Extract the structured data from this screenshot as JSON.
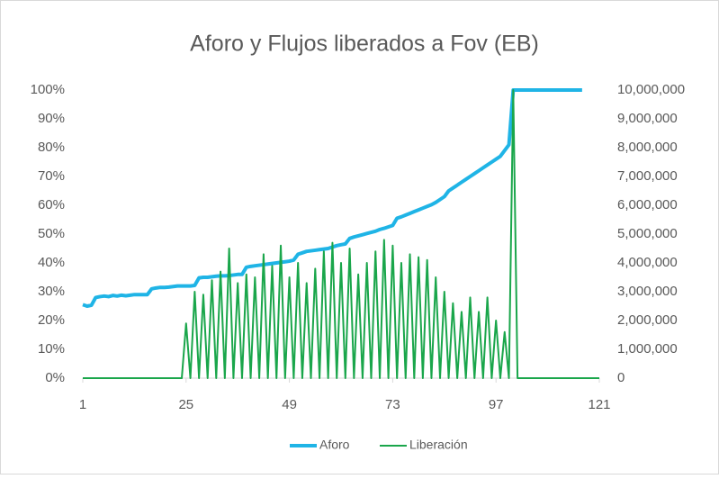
{
  "chart_data": {
    "type": "line",
    "title": "Aforo y Flujos liberados a Fov (EB)",
    "x": [
      1,
      2,
      3,
      4,
      5,
      6,
      7,
      8,
      9,
      10,
      11,
      12,
      13,
      14,
      15,
      16,
      17,
      18,
      19,
      20,
      21,
      22,
      23,
      24,
      25,
      26,
      27,
      28,
      29,
      30,
      31,
      32,
      33,
      34,
      35,
      36,
      37,
      38,
      39,
      40,
      41,
      42,
      43,
      44,
      45,
      46,
      47,
      48,
      49,
      50,
      51,
      52,
      53,
      54,
      55,
      56,
      57,
      58,
      59,
      60,
      61,
      62,
      63,
      64,
      65,
      66,
      67,
      68,
      69,
      70,
      71,
      72,
      73,
      74,
      75,
      76,
      77,
      78,
      79,
      80,
      81,
      82,
      83,
      84,
      85,
      86,
      87,
      88,
      89,
      90,
      91,
      92,
      93,
      94,
      95,
      96,
      97,
      98,
      99,
      100,
      101,
      102,
      103,
      104,
      105,
      106,
      107,
      108,
      109,
      110,
      111,
      112,
      113,
      114,
      115,
      116,
      117,
      118,
      119,
      120,
      121
    ],
    "xlim": [
      1,
      121
    ],
    "xticks": [
      1,
      25,
      49,
      73,
      97,
      121
    ],
    "ylim": [
      0,
      100
    ],
    "yticks": [
      {
        "value": 0,
        "label": "0%"
      },
      {
        "value": 10,
        "label": "10%"
      },
      {
        "value": 20,
        "label": "20%"
      },
      {
        "value": 30,
        "label": "30%"
      },
      {
        "value": 40,
        "label": "40%"
      },
      {
        "value": 50,
        "label": "50%"
      },
      {
        "value": 60,
        "label": "60%"
      },
      {
        "value": 70,
        "label": "70%"
      },
      {
        "value": 80,
        "label": "80%"
      },
      {
        "value": 90,
        "label": "90%"
      },
      {
        "value": 100,
        "label": "100%"
      }
    ],
    "y2lim": [
      0,
      10000000
    ],
    "y2ticks": [
      0,
      {
        "value": 1000000,
        "label": "1,000,000"
      },
      {
        "value": 2000000,
        "label": "2,000,000"
      },
      {
        "value": 3000000,
        "label": "3,000,000"
      },
      {
        "value": 4000000,
        "label": "4,000,000"
      },
      {
        "value": 5000000,
        "label": "5,000,000"
      },
      {
        "value": 6000000,
        "label": "6,000,000"
      },
      {
        "value": 7000000,
        "label": "7,000,000"
      },
      {
        "value": 8000000,
        "label": "8,000,000"
      },
      {
        "value": 9000000,
        "label": "9,000,000"
      },
      {
        "value": 10000000,
        "label": "10,000,000"
      }
    ],
    "grid": false,
    "legend": "bottom",
    "series": [
      {
        "name": "Aforo",
        "color": "#1fb4e6",
        "axis": "y",
        "values": [
          25.5,
          25,
          25.3,
          28,
          28.3,
          28.5,
          28.3,
          28.7,
          28.5,
          28.8,
          28.6,
          28.8,
          29,
          29,
          29,
          29,
          31,
          31.3,
          31.5,
          31.5,
          31.6,
          31.8,
          32,
          32,
          32,
          32,
          32.2,
          34.8,
          35,
          35,
          35.2,
          35.4,
          35.5,
          35.5,
          35.6,
          35.8,
          36,
          36,
          38.5,
          38.8,
          39,
          39.2,
          39.4,
          39.6,
          39.8,
          40,
          40.2,
          40.4,
          40.6,
          41,
          43,
          43.5,
          44,
          44.2,
          44.4,
          44.6,
          44.8,
          45,
          45.5,
          46,
          46.3,
          46.6,
          48.5,
          49,
          49.4,
          49.8,
          50.2,
          50.6,
          51,
          51.6,
          52,
          52.5,
          53,
          55.5,
          56,
          56.6,
          57.2,
          57.8,
          58.4,
          59,
          59.6,
          60.2,
          61,
          62,
          63,
          65,
          66,
          67,
          68,
          69,
          70,
          71,
          72,
          73,
          74,
          75,
          76,
          77,
          79,
          81,
          100,
          100,
          100,
          100,
          100,
          100,
          100,
          100,
          100,
          100,
          100,
          100,
          100,
          100,
          100,
          100,
          100,
          null,
          null,
          null,
          null
        ]
      },
      {
        "name": "Liberación",
        "color": "#1aa64b",
        "axis": "y2",
        "values": [
          0,
          0,
          0,
          0,
          0,
          0,
          0,
          0,
          0,
          0,
          0,
          0,
          0,
          0,
          0,
          0,
          0,
          0,
          0,
          0,
          0,
          0,
          0,
          0,
          1900000,
          0,
          3000000,
          0,
          2900000,
          0,
          3400000,
          0,
          3700000,
          0,
          4500000,
          0,
          3300000,
          0,
          3600000,
          0,
          3500000,
          0,
          4300000,
          0,
          3900000,
          0,
          4600000,
          0,
          3500000,
          0,
          4000000,
          0,
          3300000,
          0,
          3800000,
          0,
          4400000,
          0,
          4700000,
          0,
          4000000,
          0,
          4500000,
          0,
          3600000,
          0,
          4000000,
          0,
          4400000,
          0,
          4800000,
          0,
          4600000,
          0,
          4000000,
          0,
          4300000,
          0,
          4200000,
          0,
          4100000,
          0,
          3500000,
          0,
          3000000,
          0,
          2600000,
          0,
          2300000,
          0,
          2800000,
          0,
          2300000,
          0,
          2800000,
          0,
          2000000,
          0,
          1600000,
          0,
          10000000,
          0,
          0,
          0,
          0,
          0,
          0,
          0,
          0,
          0,
          0,
          0,
          0,
          0,
          0,
          0,
          0,
          0,
          0,
          0,
          0
        ]
      }
    ]
  }
}
